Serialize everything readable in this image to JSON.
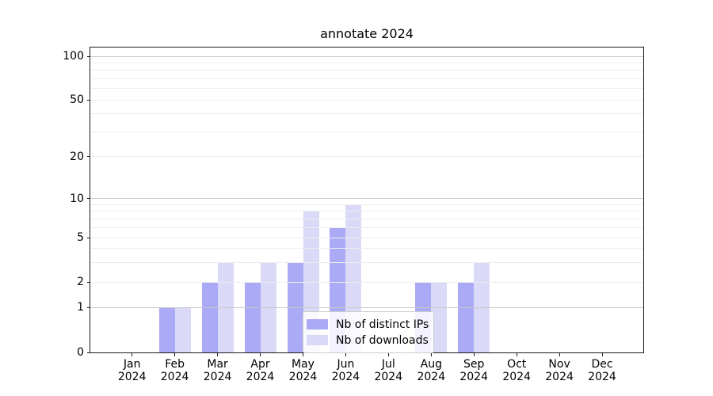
{
  "chart_data": {
    "type": "bar",
    "title": "annotate 2024",
    "categories": [
      "Jan 2024",
      "Feb 2024",
      "Mar 2024",
      "Apr 2024",
      "May 2024",
      "Jun 2024",
      "Jul 2024",
      "Aug 2024",
      "Sep 2024",
      "Oct 2024",
      "Nov 2024",
      "Dec 2024"
    ],
    "series": [
      {
        "name": "Nb of distinct IPs",
        "color": "#abaaf7",
        "values": [
          0,
          1,
          2,
          2,
          3,
          6,
          0,
          2,
          2,
          0,
          0,
          0
        ]
      },
      {
        "name": "Nb of downloads",
        "color": "#dadaf8",
        "values": [
          0,
          1,
          3,
          3,
          8,
          9,
          0,
          2,
          3,
          0,
          0,
          0
        ]
      }
    ],
    "yscale": "symlog",
    "ylim": [
      0,
      100
    ],
    "yticks": [
      0,
      1,
      2,
      5,
      10,
      20,
      50,
      100
    ],
    "minor_yticks": [
      3,
      4,
      6,
      7,
      8,
      9,
      30,
      40,
      60,
      70,
      80,
      90
    ],
    "grid": "both",
    "legend_position": "inside lower center"
  }
}
